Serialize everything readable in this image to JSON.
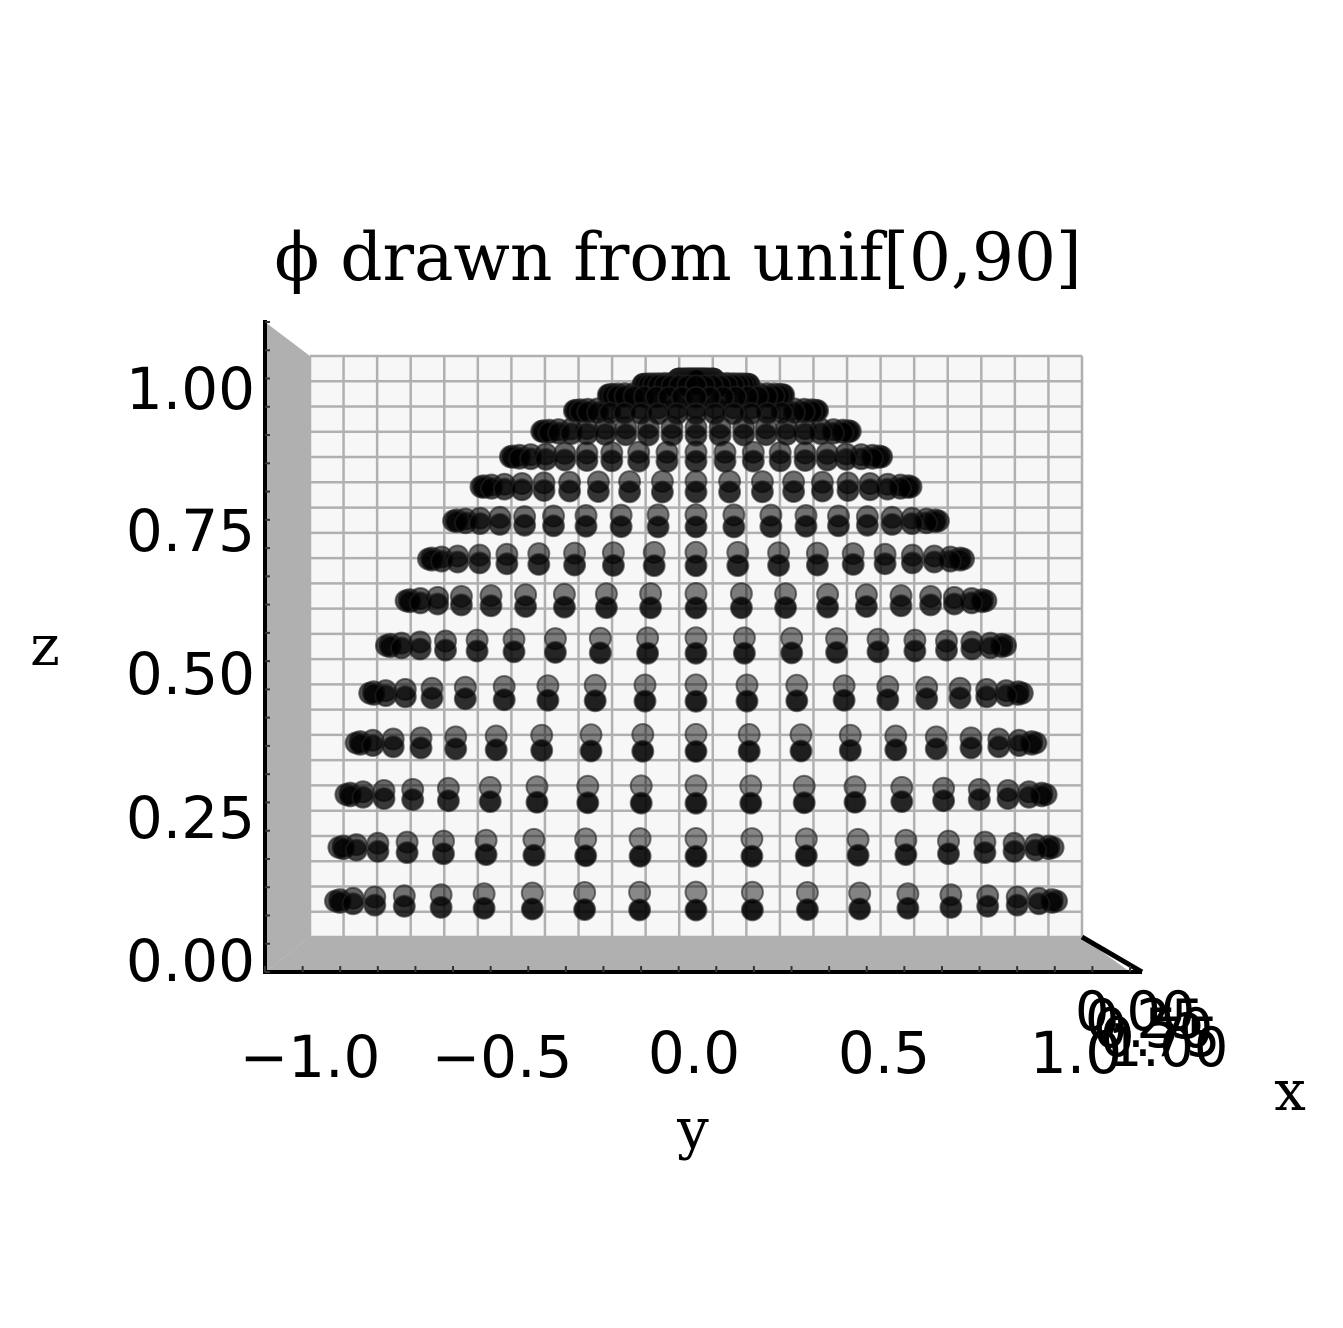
{
  "chart_data": {
    "type": "scatter",
    "projection": "3d",
    "title": "ϕ drawn from unif[0,90]",
    "xlabel": "x",
    "ylabel": "y",
    "zlabel": "z",
    "y_ticks": [
      "−1.0",
      "−0.5",
      "0.0",
      "0.5",
      "1.0"
    ],
    "z_ticks": [
      "0.00",
      "0.25",
      "0.50",
      "0.75",
      "1.00"
    ],
    "x_ticks": [
      "0.00",
      "0.25",
      "0.50",
      "0.75",
      "1.00"
    ],
    "ylim": [
      -1.1,
      1.1
    ],
    "zlim": [
      0,
      1.05
    ],
    "grid": true,
    "marker_color": "#000000",
    "pane_color": "#f7f7f7",
    "grid_color": "#b0b0b0",
    "floor_color": "#b0b0b0",
    "series": [
      {
        "distribution": "points on unit hemisphere",
        "theta_count": 40,
        "phi_count": 16,
        "phi_range_deg": [
          0,
          90
        ]
      }
    ]
  }
}
